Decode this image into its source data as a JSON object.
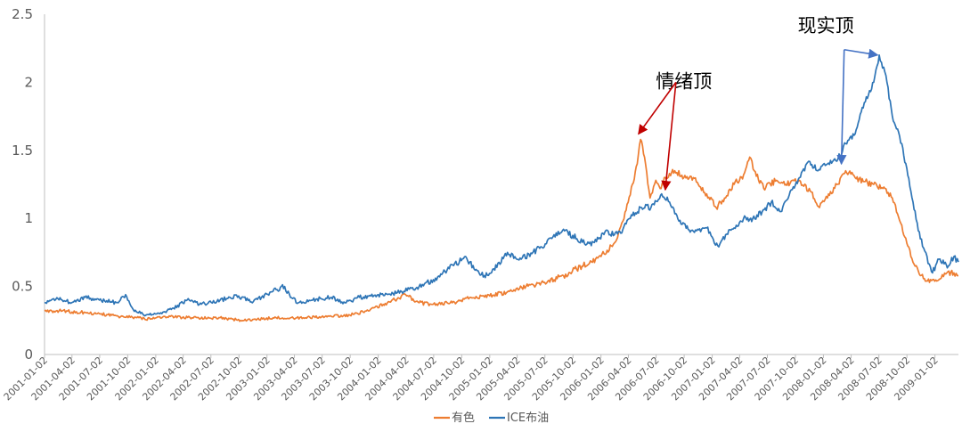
{
  "chart_data": {
    "type": "line",
    "title": "",
    "xlabel": "",
    "ylabel": "",
    "ylim": [
      0,
      2.5
    ],
    "yticks": [
      0,
      0.5,
      1,
      1.5,
      2,
      2.5
    ],
    "ytick_labels": [
      "0",
      "0.5",
      "1",
      "1.5",
      "2",
      "2.5"
    ],
    "xlim": [
      "2001-01-02",
      "2009-03-20"
    ],
    "xtick_labels": [
      "2001-01-02",
      "2001-04-02",
      "2001-07-02",
      "2001-10-02",
      "2002-01-02",
      "2002-04-02",
      "2002-07-02",
      "2002-10-02",
      "2003-01-02",
      "2003-04-02",
      "2003-07-02",
      "2003-10-02",
      "2004-01-02",
      "2004-04-02",
      "2004-07-02",
      "2004-10-02",
      "2005-01-02",
      "2005-04-02",
      "2005-07-02",
      "2005-10-02",
      "2006-01-02",
      "2006-04-02",
      "2006-07-02",
      "2006-10-02",
      "2007-01-02",
      "2007-04-02",
      "2007-07-02",
      "2007-10-02",
      "2008-01-02",
      "2008-04-02",
      "2008-07-02",
      "2008-10-02",
      "2009-01-02"
    ],
    "grid": false,
    "legend_position": "bottom-center",
    "series": [
      {
        "name": "有色",
        "color": "#ED7D31",
        "points": [
          [
            "2001-01-02",
            0.32
          ],
          [
            "2001-03-01",
            0.32
          ],
          [
            "2001-05-01",
            0.31
          ],
          [
            "2001-07-01",
            0.3
          ],
          [
            "2001-09-01",
            0.28
          ],
          [
            "2001-11-01",
            0.27
          ],
          [
            "2001-12-15",
            0.26
          ],
          [
            "2002-02-01",
            0.28
          ],
          [
            "2002-05-01",
            0.27
          ],
          [
            "2002-08-01",
            0.27
          ],
          [
            "2002-10-15",
            0.25
          ],
          [
            "2002-12-01",
            0.26
          ],
          [
            "2003-02-01",
            0.27
          ],
          [
            "2003-05-01",
            0.27
          ],
          [
            "2003-08-01",
            0.28
          ],
          [
            "2003-10-01",
            0.29
          ],
          [
            "2003-12-01",
            0.32
          ],
          [
            "2004-02-01",
            0.38
          ],
          [
            "2004-04-01",
            0.44
          ],
          [
            "2004-05-15",
            0.38
          ],
          [
            "2004-07-01",
            0.37
          ],
          [
            "2004-09-01",
            0.38
          ],
          [
            "2004-11-01",
            0.42
          ],
          [
            "2005-01-02",
            0.43
          ],
          [
            "2005-03-01",
            0.46
          ],
          [
            "2005-05-01",
            0.5
          ],
          [
            "2005-07-01",
            0.53
          ],
          [
            "2005-09-01",
            0.58
          ],
          [
            "2005-11-01",
            0.65
          ],
          [
            "2005-12-15",
            0.7
          ],
          [
            "2006-01-02",
            0.72
          ],
          [
            "2006-02-15",
            0.82
          ],
          [
            "2006-03-15",
            0.98
          ],
          [
            "2006-04-15",
            1.25
          ],
          [
            "2006-05-01",
            1.4
          ],
          [
            "2006-05-12",
            1.58
          ],
          [
            "2006-05-25",
            1.45
          ],
          [
            "2006-06-12",
            1.15
          ],
          [
            "2006-07-01",
            1.28
          ],
          [
            "2006-07-15",
            1.22
          ],
          [
            "2006-08-01",
            1.3
          ],
          [
            "2006-09-01",
            1.35
          ],
          [
            "2006-10-01",
            1.3
          ],
          [
            "2006-11-01",
            1.3
          ],
          [
            "2006-12-15",
            1.18
          ],
          [
            "2007-01-15",
            1.08
          ],
          [
            "2007-02-15",
            1.15
          ],
          [
            "2007-03-15",
            1.25
          ],
          [
            "2007-04-15",
            1.32
          ],
          [
            "2007-05-05",
            1.45
          ],
          [
            "2007-05-20",
            1.35
          ],
          [
            "2007-06-20",
            1.22
          ],
          [
            "2007-08-01",
            1.28
          ],
          [
            "2007-09-01",
            1.25
          ],
          [
            "2007-10-15",
            1.28
          ],
          [
            "2007-11-20",
            1.2
          ],
          [
            "2007-12-20",
            1.08
          ],
          [
            "2008-01-15",
            1.15
          ],
          [
            "2008-02-15",
            1.25
          ],
          [
            "2008-03-15",
            1.35
          ],
          [
            "2008-04-15",
            1.3
          ],
          [
            "2008-05-15",
            1.27
          ],
          [
            "2008-06-15",
            1.25
          ],
          [
            "2008-07-15",
            1.22
          ],
          [
            "2008-08-15",
            1.15
          ],
          [
            "2008-09-15",
            0.95
          ],
          [
            "2008-10-15",
            0.72
          ],
          [
            "2008-11-15",
            0.58
          ],
          [
            "2008-12-15",
            0.53
          ],
          [
            "2009-01-15",
            0.55
          ],
          [
            "2009-02-10",
            0.6
          ],
          [
            "2009-03-05",
            0.6
          ],
          [
            "2009-03-20",
            0.58
          ]
        ]
      },
      {
        "name": "ICE布油",
        "color": "#2E75B6",
        "points": [
          [
            "2001-01-02",
            0.38
          ],
          [
            "2001-02-01",
            0.41
          ],
          [
            "2001-03-01",
            0.4
          ],
          [
            "2001-04-01",
            0.38
          ],
          [
            "2001-05-15",
            0.42
          ],
          [
            "2001-07-01",
            0.4
          ],
          [
            "2001-09-01",
            0.38
          ],
          [
            "2001-09-25",
            0.44
          ],
          [
            "2001-10-20",
            0.33
          ],
          [
            "2001-12-01",
            0.29
          ],
          [
            "2002-01-15",
            0.3
          ],
          [
            "2002-03-01",
            0.34
          ],
          [
            "2002-04-15",
            0.4
          ],
          [
            "2002-06-01",
            0.37
          ],
          [
            "2002-08-01",
            0.4
          ],
          [
            "2002-10-01",
            0.43
          ],
          [
            "2002-11-15",
            0.38
          ],
          [
            "2002-12-15",
            0.42
          ],
          [
            "2003-01-15",
            0.46
          ],
          [
            "2003-03-01",
            0.5
          ],
          [
            "2003-03-20",
            0.42
          ],
          [
            "2003-04-15",
            0.38
          ],
          [
            "2003-06-01",
            0.4
          ],
          [
            "2003-08-01",
            0.42
          ],
          [
            "2003-09-15",
            0.38
          ],
          [
            "2003-11-01",
            0.42
          ],
          [
            "2004-01-02",
            0.44
          ],
          [
            "2004-03-01",
            0.45
          ],
          [
            "2004-05-15",
            0.5
          ],
          [
            "2004-07-01",
            0.55
          ],
          [
            "2004-08-15",
            0.62
          ],
          [
            "2004-10-15",
            0.72
          ],
          [
            "2004-11-15",
            0.62
          ],
          [
            "2004-12-15",
            0.58
          ],
          [
            "2005-01-15",
            0.63
          ],
          [
            "2005-03-01",
            0.75
          ],
          [
            "2005-04-15",
            0.7
          ],
          [
            "2005-06-15",
            0.78
          ],
          [
            "2005-08-01",
            0.88
          ],
          [
            "2005-09-01",
            0.92
          ],
          [
            "2005-10-15",
            0.85
          ],
          [
            "2005-12-01",
            0.8
          ],
          [
            "2005-12-25",
            0.85
          ],
          [
            "2006-01-15",
            0.9
          ],
          [
            "2006-02-15",
            0.88
          ],
          [
            "2006-03-15",
            0.92
          ],
          [
            "2006-04-15",
            1.02
          ],
          [
            "2006-05-15",
            1.08
          ],
          [
            "2006-06-15",
            1.08
          ],
          [
            "2006-07-20",
            1.18
          ],
          [
            "2006-08-15",
            1.12
          ],
          [
            "2006-09-15",
            0.98
          ],
          [
            "2006-10-15",
            0.92
          ],
          [
            "2006-11-15",
            0.92
          ],
          [
            "2006-12-15",
            0.93
          ],
          [
            "2007-01-20",
            0.8
          ],
          [
            "2007-02-15",
            0.88
          ],
          [
            "2007-03-15",
            0.93
          ],
          [
            "2007-04-15",
            1.0
          ],
          [
            "2007-05-15",
            1.0
          ],
          [
            "2007-06-15",
            1.05
          ],
          [
            "2007-07-15",
            1.12
          ],
          [
            "2007-08-15",
            1.05
          ],
          [
            "2007-09-15",
            1.2
          ],
          [
            "2007-10-15",
            1.3
          ],
          [
            "2007-11-15",
            1.42
          ],
          [
            "2007-12-15",
            1.35
          ],
          [
            "2008-01-15",
            1.4
          ],
          [
            "2008-02-15",
            1.42
          ],
          [
            "2008-03-15",
            1.55
          ],
          [
            "2008-04-15",
            1.62
          ],
          [
            "2008-05-15",
            1.85
          ],
          [
            "2008-06-15",
            2.0
          ],
          [
            "2008-07-03",
            2.2
          ],
          [
            "2008-07-25",
            2.05
          ],
          [
            "2008-08-15",
            1.75
          ],
          [
            "2008-09-15",
            1.55
          ],
          [
            "2008-10-15",
            1.2
          ],
          [
            "2008-11-15",
            0.85
          ],
          [
            "2008-12-25",
            0.6
          ],
          [
            "2009-01-15",
            0.7
          ],
          [
            "2009-02-15",
            0.65
          ],
          [
            "2009-03-05",
            0.72
          ],
          [
            "2009-03-20",
            0.68
          ]
        ]
      }
    ],
    "annotations": [
      {
        "text": "情绪顶",
        "color": "#C00000",
        "anchor": [
          "2006-10-01",
          1.96
        ],
        "arrows": [
          {
            "from": [
              "2006-09-05",
              2.0
            ],
            "to": [
              "2006-05-05",
              1.62
            ]
          },
          {
            "from": [
              "2006-09-05",
              2.0
            ],
            "to": [
              "2006-08-01",
              1.21
            ]
          }
        ]
      },
      {
        "text": "现实顶",
        "color": "#4472C4",
        "anchor": [
          "2008-01-10",
          2.37
        ],
        "arrows": [
          {
            "from": [
              "2008-03-10",
              2.24
            ],
            "to": [
              "2008-06-28",
              2.2
            ]
          },
          {
            "from": [
              "2008-03-10",
              2.24
            ],
            "to": [
              "2008-03-01",
              1.4
            ]
          }
        ]
      }
    ]
  }
}
